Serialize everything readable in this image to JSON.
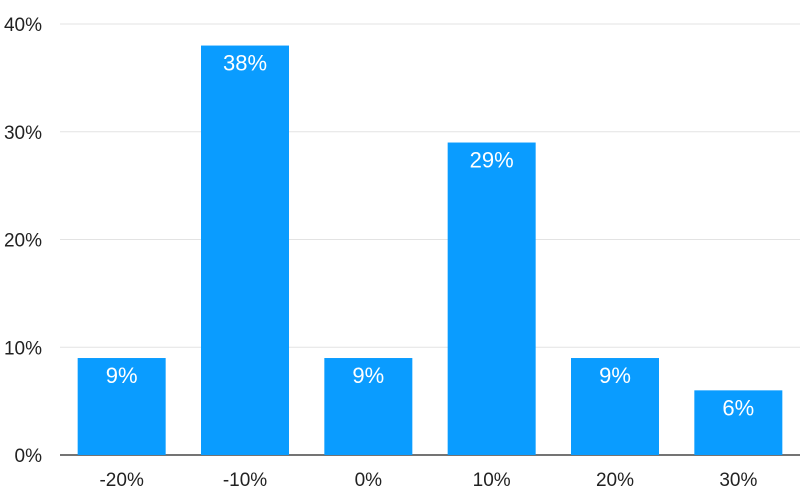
{
  "chart_data": {
    "type": "bar",
    "title": "",
    "xlabel": "",
    "ylabel": "",
    "categories": [
      "-20%",
      "-10%",
      "0%",
      "10%",
      "20%",
      "30%"
    ],
    "values": [
      9,
      38,
      9,
      29,
      9,
      6
    ],
    "data_labels": [
      "9%",
      "38%",
      "9%",
      "29%",
      "9%",
      "6%"
    ],
    "ylim": [
      0,
      40
    ],
    "y_ticks": [
      {
        "value": 0,
        "label": "0%"
      },
      {
        "value": 10,
        "label": "10%"
      },
      {
        "value": 20,
        "label": "20%"
      },
      {
        "value": 30,
        "label": "30%"
      },
      {
        "value": 40,
        "label": "40%"
      }
    ],
    "grid": true,
    "legend": "none",
    "bar_color": "#0a9cff"
  }
}
